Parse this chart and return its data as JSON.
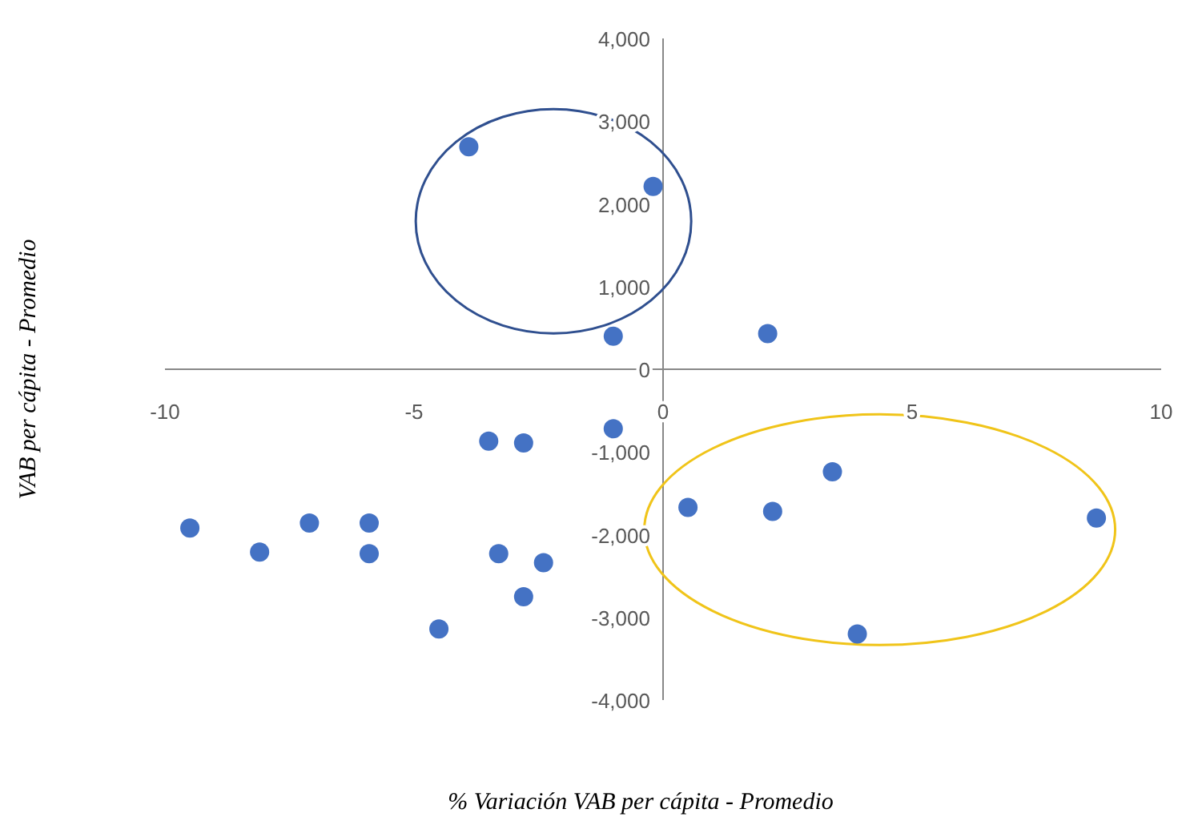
{
  "chart_data": {
    "type": "scatter",
    "xlabel": "% Variación VAB per cápita - Promedio",
    "ylabel": "VAB per cápita - Promedio",
    "xlim": [
      -10,
      10
    ],
    "xticks": [
      -10,
      -5,
      0,
      5,
      10
    ],
    "ylim": [
      -4000,
      4000
    ],
    "yticks": [
      {
        "value": -4000,
        "label": "-4,000"
      },
      {
        "value": -3000,
        "label": "-3,000"
      },
      {
        "value": -2000,
        "label": "-2,000"
      },
      {
        "value": -1000,
        "label": "-1,000"
      },
      0,
      {
        "value": 1000,
        "label": "1,000"
      },
      {
        "value": 2000,
        "label": "2,000"
      },
      {
        "value": 3000,
        "label": "3,000"
      },
      {
        "value": 4000,
        "label": "4,000"
      }
    ],
    "grid": false,
    "marker": "circle",
    "series": [
      {
        "color": "#4472c4",
        "x": [
          -3.9,
          -0.2,
          -1.0,
          2.1,
          -1.0,
          -3.5,
          -2.8,
          -9.5,
          -8.1,
          -7.1,
          -5.9,
          -5.9,
          -3.3,
          -2.4,
          -2.8,
          -4.5,
          0.5,
          2.2,
          3.4,
          3.9,
          8.7
        ],
        "values": [
          2690,
          2210,
          400,
          430,
          -720,
          -870,
          -890,
          -1920,
          -2210,
          -1860,
          -1860,
          -2230,
          -2230,
          -2340,
          -2750,
          -3140,
          -1670,
          -1720,
          -1240,
          -3200,
          -1800
        ]
      }
    ]
  }
}
